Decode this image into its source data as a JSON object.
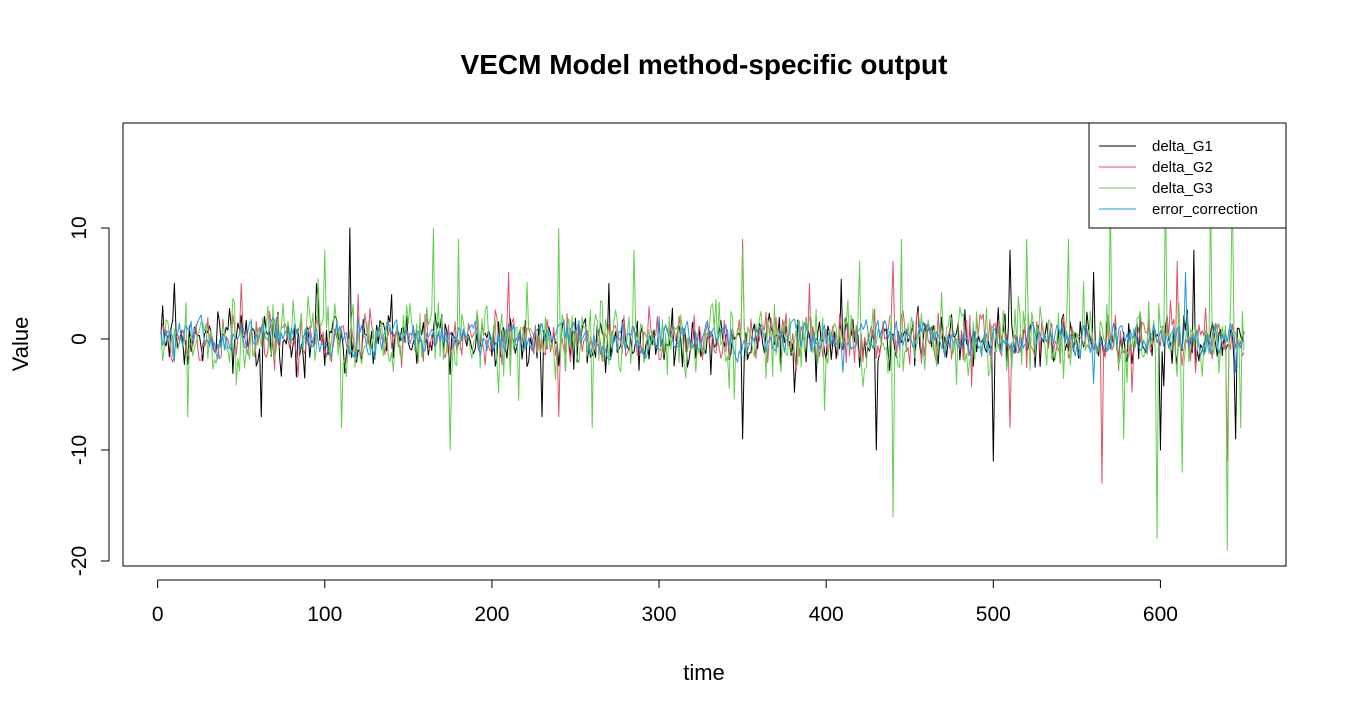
{
  "chart_data": {
    "type": "line",
    "title": "VECM Model method-specific output",
    "xlabel": "time",
    "ylabel": "Value",
    "xlim": [
      2,
      650
    ],
    "ylim": [
      -20,
      19
    ],
    "x_ticks": [
      0,
      100,
      200,
      300,
      400,
      500,
      600
    ],
    "y_ticks": [
      -20,
      -10,
      0,
      10
    ],
    "legend_position": "top-right",
    "grid": false,
    "series": [
      {
        "name": "delta_G1",
        "color": "#000000",
        "typical_amplitude": 2.2,
        "peaks": [
          [
            3,
            3
          ],
          [
            10,
            5
          ],
          [
            62,
            -7
          ],
          [
            95,
            5
          ],
          [
            115,
            10
          ],
          [
            140,
            4
          ],
          [
            230,
            -7
          ],
          [
            270,
            5
          ],
          [
            350,
            -9
          ],
          [
            430,
            -10
          ],
          [
            500,
            -11
          ],
          [
            510,
            8
          ],
          [
            560,
            6
          ],
          [
            600,
            -10
          ],
          [
            620,
            8
          ],
          [
            645,
            -9
          ]
        ]
      },
      {
        "name": "delta_G2",
        "color": "#DF536B",
        "typical_amplitude": 2.0,
        "peaks": [
          [
            50,
            5
          ],
          [
            120,
            4
          ],
          [
            210,
            6
          ],
          [
            240,
            -7
          ],
          [
            350,
            9
          ],
          [
            390,
            5
          ],
          [
            440,
            7
          ],
          [
            510,
            -8
          ],
          [
            565,
            -13
          ],
          [
            610,
            7
          ],
          [
            640,
            -11
          ]
        ]
      },
      {
        "name": "delta_G3",
        "color": "#61D04F",
        "typical_amplitude": 2.8,
        "peaks": [
          [
            18,
            -7
          ],
          [
            100,
            8
          ],
          [
            110,
            -8
          ],
          [
            165,
            -11
          ],
          [
            165,
            10
          ],
          [
            175,
            -10
          ],
          [
            180,
            9
          ],
          [
            240,
            10
          ],
          [
            260,
            -8
          ],
          [
            285,
            8
          ],
          [
            350,
            8
          ],
          [
            420,
            7
          ],
          [
            440,
            -16
          ],
          [
            445,
            9
          ],
          [
            520,
            9
          ],
          [
            545,
            9
          ],
          [
            570,
            13
          ],
          [
            578,
            -9
          ],
          [
            598,
            -18
          ],
          [
            603,
            14
          ],
          [
            613,
            -12
          ],
          [
            630,
            13
          ],
          [
            640,
            -19
          ],
          [
            643,
            14
          ],
          [
            648,
            -8
          ]
        ]
      },
      {
        "name": "error_correction",
        "color": "#2297E6",
        "typical_amplitude": 1.2,
        "peaks": [
          [
            10,
            -2
          ],
          [
            120,
            2
          ],
          [
            300,
            2
          ],
          [
            410,
            -3
          ],
          [
            560,
            -4
          ],
          [
            615,
            6
          ],
          [
            645,
            -3
          ]
        ]
      }
    ]
  }
}
